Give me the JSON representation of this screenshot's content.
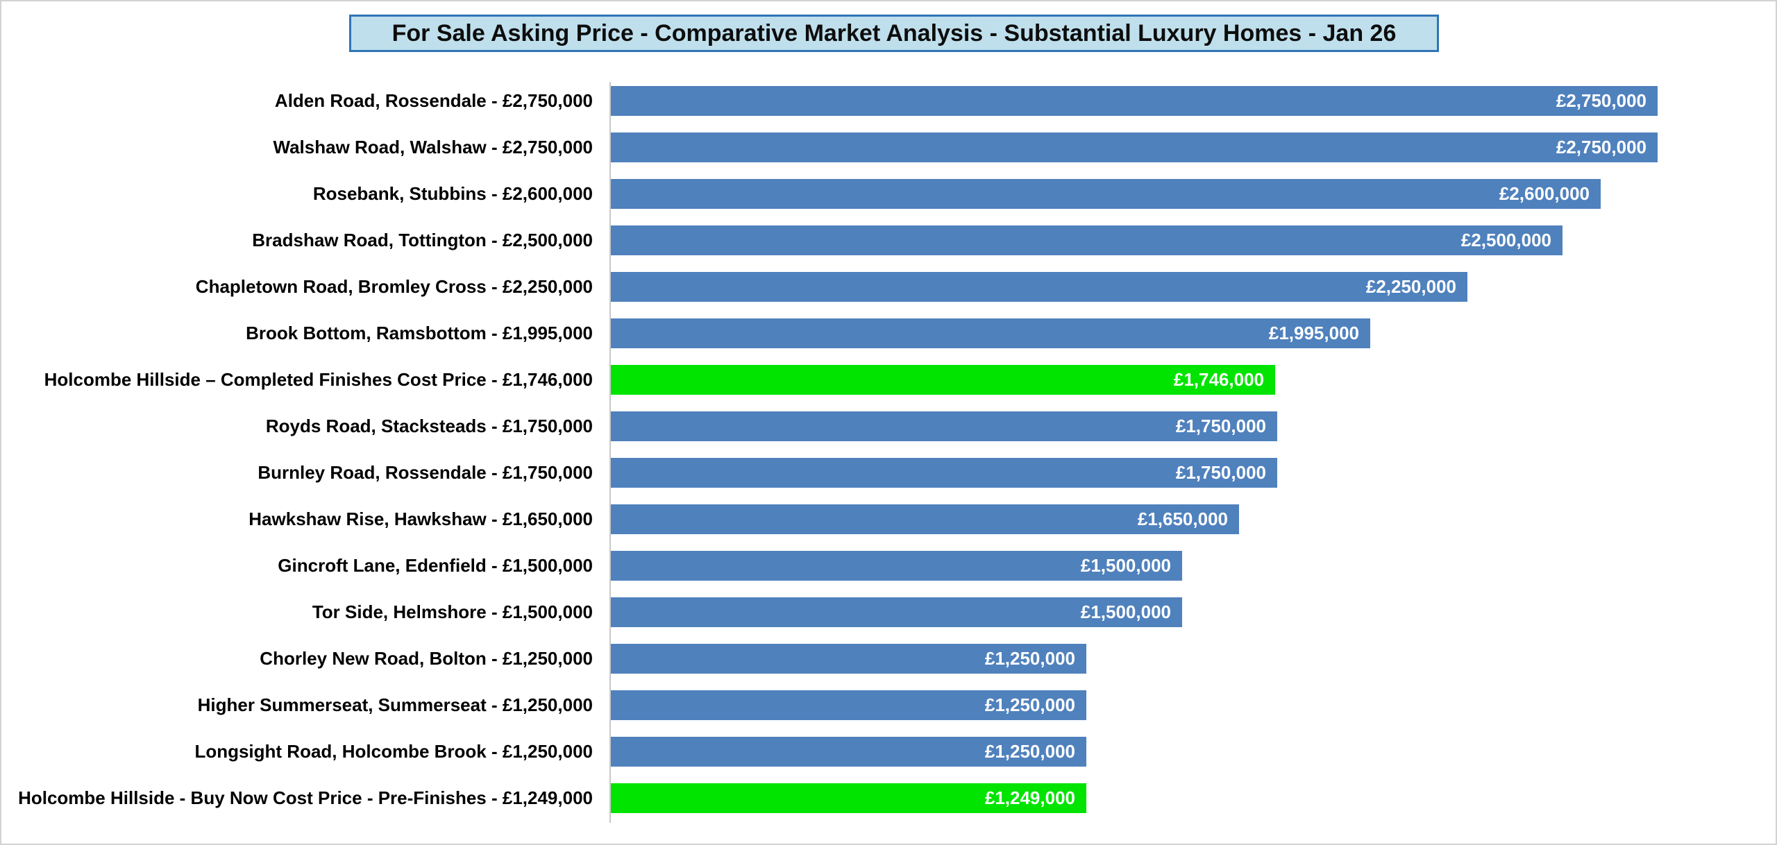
{
  "header": {
    "title": "For Sale Asking Price - Comparative Market Analysis - Substantial Luxury Homes - Jan 26"
  },
  "colors": {
    "bar_default": "#4f81bd",
    "bar_highlight": "#00e400",
    "title_fill": "#bfdfec",
    "title_border": "#2f75b5",
    "axis_line": "#c8c8c8",
    "frame_border": "#d2d2d2",
    "value_label_text": "#ffffff",
    "category_label_text": "#000000"
  },
  "chart_data": {
    "type": "bar",
    "orientation": "horizontal",
    "title": "For Sale Asking Price - Comparative Market Analysis - Substantial Luxury Homes - Jan 26",
    "xlabel": "",
    "ylabel": "",
    "xlim": [
      0,
      3000000
    ],
    "grid": false,
    "legend": false,
    "value_labels_position": "inside-end",
    "categories": [
      "Alden Road, Rossendale - £2,750,000",
      "Walshaw Road, Walshaw - £2,750,000",
      "Rosebank, Stubbins - £2,600,000",
      "Bradshaw Road, Tottington - £2,500,000",
      "Chapletown Road, Bromley Cross - £2,250,000",
      "Brook Bottom, Ramsbottom - £1,995,000",
      "Holcombe Hillside – Completed Finishes Cost Price - £1,746,000",
      "Royds Road, Stacksteads - £1,750,000",
      "Burnley Road, Rossendale - £1,750,000",
      "Hawkshaw Rise, Hawkshaw - £1,650,000",
      "Gincroft Lane, Edenfield - £1,500,000",
      "Tor Side, Helmshore - £1,500,000",
      "Chorley New Road, Bolton - £1,250,000",
      "Higher Summerseat, Summerseat - £1,250,000",
      "Longsight Road, Holcombe Brook - £1,250,000",
      "Holcombe Hillside - Buy Now Cost Price - Pre-Finishes - £1,249,000"
    ],
    "values": [
      2750000,
      2750000,
      2600000,
      2500000,
      2250000,
      1995000,
      1746000,
      1750000,
      1750000,
      1650000,
      1500000,
      1500000,
      1250000,
      1250000,
      1250000,
      1249000
    ],
    "bar_labels": [
      "£2,750,000",
      "£2,750,000",
      "£2,600,000",
      "£2,500,000",
      "£2,250,000",
      "£1,995,000",
      "£1,746,000",
      "£1,750,000",
      "£1,750,000",
      "£1,650,000",
      "£1,500,000",
      "£1,500,000",
      "£1,250,000",
      "£1,250,000",
      "£1,250,000",
      "£1,249,000"
    ],
    "highlighted": [
      false,
      false,
      false,
      false,
      false,
      false,
      true,
      false,
      false,
      false,
      false,
      false,
      false,
      false,
      false,
      true
    ]
  }
}
